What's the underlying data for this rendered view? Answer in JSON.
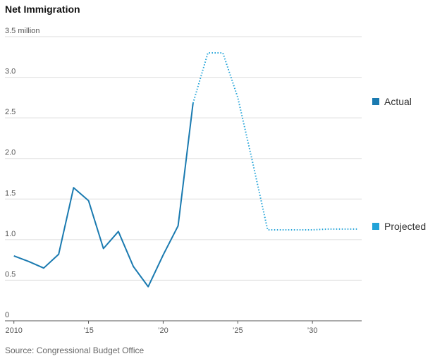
{
  "chart_data": {
    "type": "line",
    "title": "Net Immigration",
    "ylabel": "3.5 million",
    "ylim": [
      0,
      3.5
    ],
    "xlim": [
      2009.4,
      2033.3
    ],
    "y_ticks": [
      {
        "value": 0,
        "label": "0"
      },
      {
        "value": 0.5,
        "label": "0.5"
      },
      {
        "value": 1.0,
        "label": "1.0"
      },
      {
        "value": 1.5,
        "label": "1.5"
      },
      {
        "value": 2.0,
        "label": "2.0"
      },
      {
        "value": 2.5,
        "label": "2.5"
      },
      {
        "value": 3.0,
        "label": "3.0"
      },
      {
        "value": 3.5,
        "label": "3.5 million"
      }
    ],
    "x_ticks": [
      {
        "value": 2010,
        "label": "2010"
      },
      {
        "value": 2015,
        "label": "’15"
      },
      {
        "value": 2020,
        "label": "’20"
      },
      {
        "value": 2025,
        "label": "’25"
      },
      {
        "value": 2030,
        "label": "’30"
      }
    ],
    "series": [
      {
        "name": "Actual",
        "color": "#1a7ab0",
        "style": "solid",
        "x": [
          2010,
          2011,
          2012,
          2013,
          2014,
          2015,
          2016,
          2017,
          2018,
          2019,
          2020,
          2021,
          2022
        ],
        "values": [
          0.8,
          0.73,
          0.65,
          0.82,
          1.64,
          1.48,
          0.89,
          1.1,
          0.67,
          0.42,
          0.81,
          1.17,
          2.68
        ]
      },
      {
        "name": "Projected",
        "color": "#22a3d8",
        "style": "dotted",
        "x": [
          2022,
          2023,
          2024,
          2025,
          2026,
          2027,
          2028,
          2029,
          2030,
          2031,
          2032,
          2033
        ],
        "values": [
          2.68,
          3.3,
          3.3,
          2.75,
          1.95,
          1.12,
          1.12,
          1.12,
          1.12,
          1.13,
          1.13,
          1.13
        ]
      }
    ],
    "source": "Source: Congressional Budget Office"
  }
}
